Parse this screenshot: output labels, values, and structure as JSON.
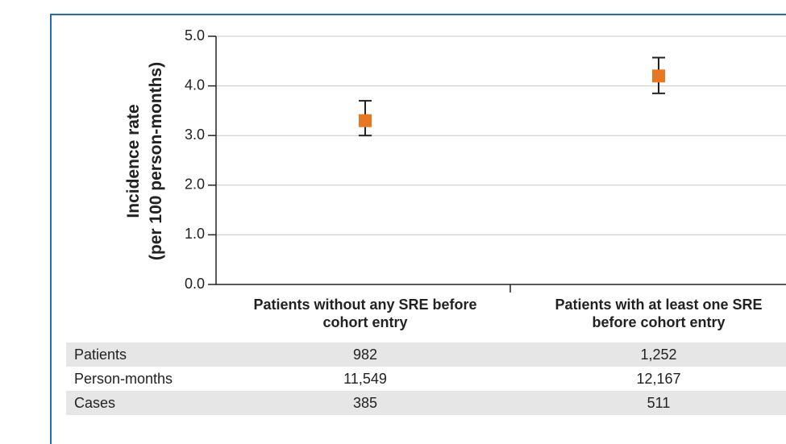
{
  "chart_data": {
    "type": "scatter",
    "ylabel": [
      "Incidence rate",
      "(per 100 person-months)"
    ],
    "categories": [
      "Patients without any SRE before cohort entry",
      "Patients with at least one SRE before cohort entry"
    ],
    "series": [
      {
        "color": "#e87722",
        "values": [
          3.3,
          4.2
        ],
        "lower": [
          3.0,
          3.85
        ],
        "upper": [
          3.7,
          4.57
        ]
      }
    ],
    "ylim": [
      0,
      5
    ],
    "yticks": [
      {
        "value": 0,
        "label": "0.0"
      },
      {
        "value": 1,
        "label": "1.0"
      },
      {
        "value": 2,
        "label": "2.0"
      },
      {
        "value": 3,
        "label": "3.0"
      },
      {
        "value": 4,
        "label": "4.0"
      },
      {
        "value": 5,
        "label": "5.0"
      }
    ],
    "grid": true
  },
  "table": {
    "rows": [
      [
        "Patients",
        "982",
        "1,252"
      ],
      [
        "Person-months",
        "11,549",
        "12,167"
      ],
      [
        "Cases",
        "385",
        "511"
      ]
    ]
  }
}
